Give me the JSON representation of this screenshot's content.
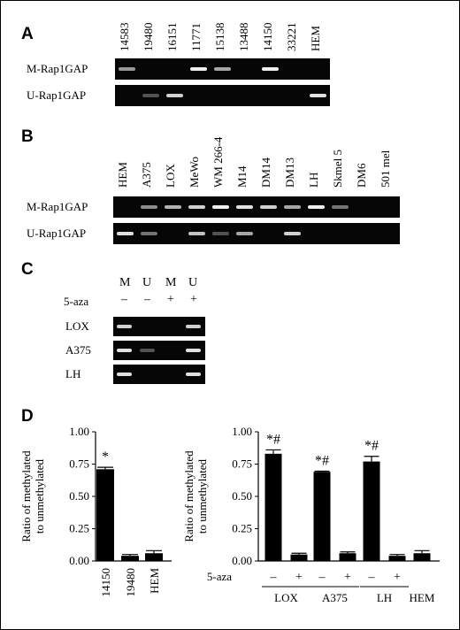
{
  "panel_a": {
    "letter": "A",
    "lanes": [
      "14583",
      "19480",
      "16151",
      "11771",
      "15138",
      "13488",
      "14150",
      "33221",
      "HEM"
    ],
    "rows": [
      {
        "label": "M-Rap1GAP",
        "bands": [
          0.65,
          0,
          0,
          0.95,
          0.7,
          0,
          0.95,
          0,
          0
        ]
      },
      {
        "label": "U-Rap1GAP",
        "bands": [
          0,
          0.35,
          0.85,
          0,
          0,
          0,
          0,
          0,
          0.9
        ]
      }
    ]
  },
  "panel_b": {
    "letter": "B",
    "lanes": [
      "HEM",
      "A375",
      "LOX",
      "MeWo",
      "WM 266-4",
      "M14",
      "DM14",
      "DM13",
      "LH",
      "Skmel 5",
      "DM6",
      "501 mel"
    ],
    "rows": [
      {
        "label": "M-Rap1GAP",
        "bands": [
          0,
          0.6,
          0.75,
          0.85,
          0.95,
          0.9,
          0.85,
          0.7,
          0.95,
          0.5,
          0,
          0
        ]
      },
      {
        "label": "U-Rap1GAP",
        "bands": [
          0.9,
          0.5,
          0,
          0.8,
          0.35,
          0.7,
          0,
          0.85,
          0,
          0,
          0,
          0
        ]
      }
    ]
  },
  "panel_c": {
    "letter": "C",
    "lanes": [
      "M",
      "U",
      "M",
      "U"
    ],
    "aza_label": "5-aza",
    "aza_signs": [
      "–",
      "–",
      "+",
      "+"
    ],
    "rows": [
      {
        "label": "LOX",
        "bands": [
          0.85,
          0,
          0,
          0.85
        ]
      },
      {
        "label": "A375",
        "bands": [
          0.9,
          0.35,
          0,
          0.9
        ]
      },
      {
        "label": "LH",
        "bands": [
          0.9,
          0,
          0,
          0.9
        ]
      }
    ]
  },
  "panel_d": {
    "letter": "D",
    "ylabel_line1": "Ratio of methylated",
    "ylabel_line2": "to unmethylated",
    "aza_label": "5-aza"
  },
  "chart_data": [
    {
      "type": "bar",
      "categories": [
        "14150",
        "19480",
        "HEM"
      ],
      "values": [
        0.71,
        0.04,
        0.06
      ],
      "errors": [
        0.015,
        0.01,
        0.02
      ],
      "annotations": [
        "*",
        "",
        ""
      ],
      "ylabel": "Ratio of methylated to unmethylated",
      "ylim": [
        0,
        1.0
      ],
      "yticks": [
        "0.00",
        "0.25",
        "0.50",
        "0.75",
        "1.00"
      ]
    },
    {
      "type": "bar",
      "categories": [
        "LOX –",
        "LOX +",
        "A375 –",
        "A375 +",
        "LH –",
        "LH +",
        "HEM"
      ],
      "values": [
        0.83,
        0.05,
        0.69,
        0.06,
        0.77,
        0.04,
        0.06
      ],
      "errors": [
        0.03,
        0.01,
        0.005,
        0.01,
        0.04,
        0.01,
        0.02
      ],
      "annotations": [
        "*#",
        "",
        "*#",
        "",
        "*#",
        "",
        ""
      ],
      "aza_signs": [
        "–",
        "+",
        "–",
        "+",
        "–",
        "+",
        ""
      ],
      "groups": [
        "LOX",
        "A375",
        "LH",
        "HEM"
      ],
      "ylabel": "Ratio of methylated to unmethylated",
      "ylim": [
        0,
        1.0
      ],
      "yticks": [
        "0.00",
        "0.25",
        "0.50",
        "0.75",
        "1.00"
      ]
    }
  ]
}
